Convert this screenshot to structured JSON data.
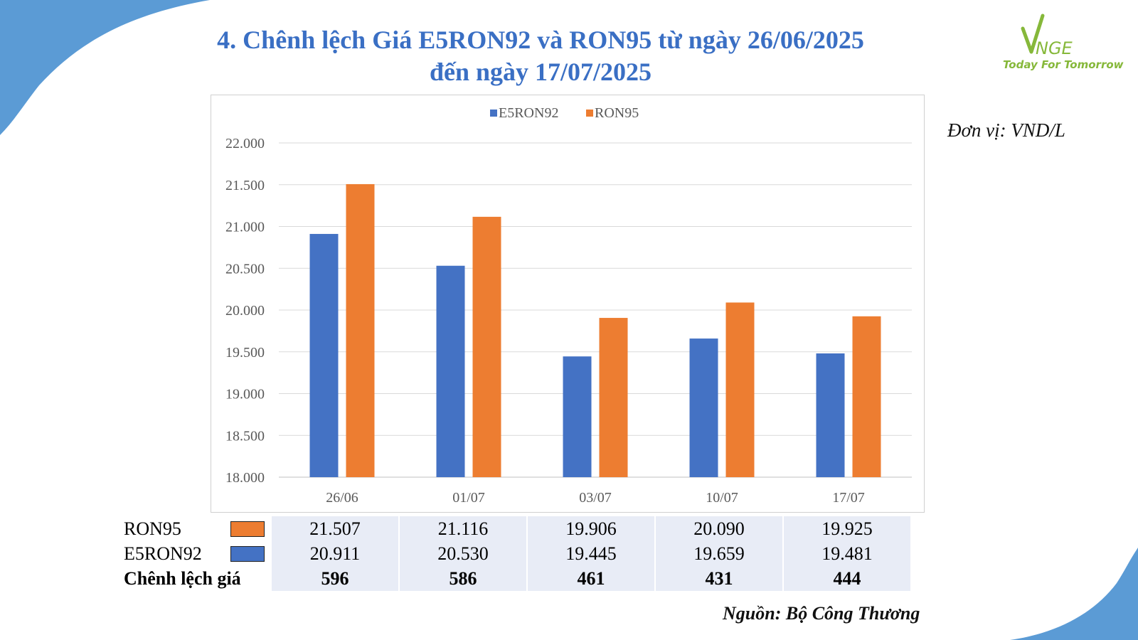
{
  "title_line1": "4. Chênh lệch Giá E5RON92 và RON95 từ ngày 26/06/2025",
  "title_line2": "đến ngày 17/07/2025",
  "logo": {
    "mark": "VNGE",
    "tagline": "Today For Tomorrow"
  },
  "unit_label": "Đơn vị: VND/L",
  "source_label": "Nguồn: Bộ Công Thương",
  "colors": {
    "title": "#3a6fc4",
    "e5ron92": "#4472c4",
    "ron95": "#ed7d31",
    "corner": "#5b9bd5",
    "table_bg": "#e8ecf6"
  },
  "chart_data": {
    "type": "bar",
    "categories": [
      "26/06",
      "01/07",
      "03/07",
      "10/07",
      "17/07"
    ],
    "series": [
      {
        "name": "E5RON92",
        "values": [
          20911,
          20530,
          19445,
          19659,
          19481
        ]
      },
      {
        "name": "RON95",
        "values": [
          21507,
          21116,
          19906,
          20090,
          19925
        ]
      }
    ],
    "ylim": [
      18000,
      22000
    ],
    "yticks": [
      "18.000",
      "18.500",
      "19.000",
      "19.500",
      "20.000",
      "20.500",
      "21.000",
      "21.500",
      "22.000"
    ],
    "legend": "top-center",
    "grid": true
  },
  "table": {
    "rows": [
      {
        "label": "RON95",
        "values": [
          "21.507",
          "21.116",
          "19.906",
          "20.090",
          "19.925"
        ]
      },
      {
        "label": "E5RON92",
        "values": [
          "20.911",
          "20.530",
          "19.445",
          "19.659",
          "19.481"
        ]
      },
      {
        "label": "Chênh lệch giá",
        "values": [
          "596",
          "586",
          "461",
          "431",
          "444"
        ]
      }
    ]
  }
}
